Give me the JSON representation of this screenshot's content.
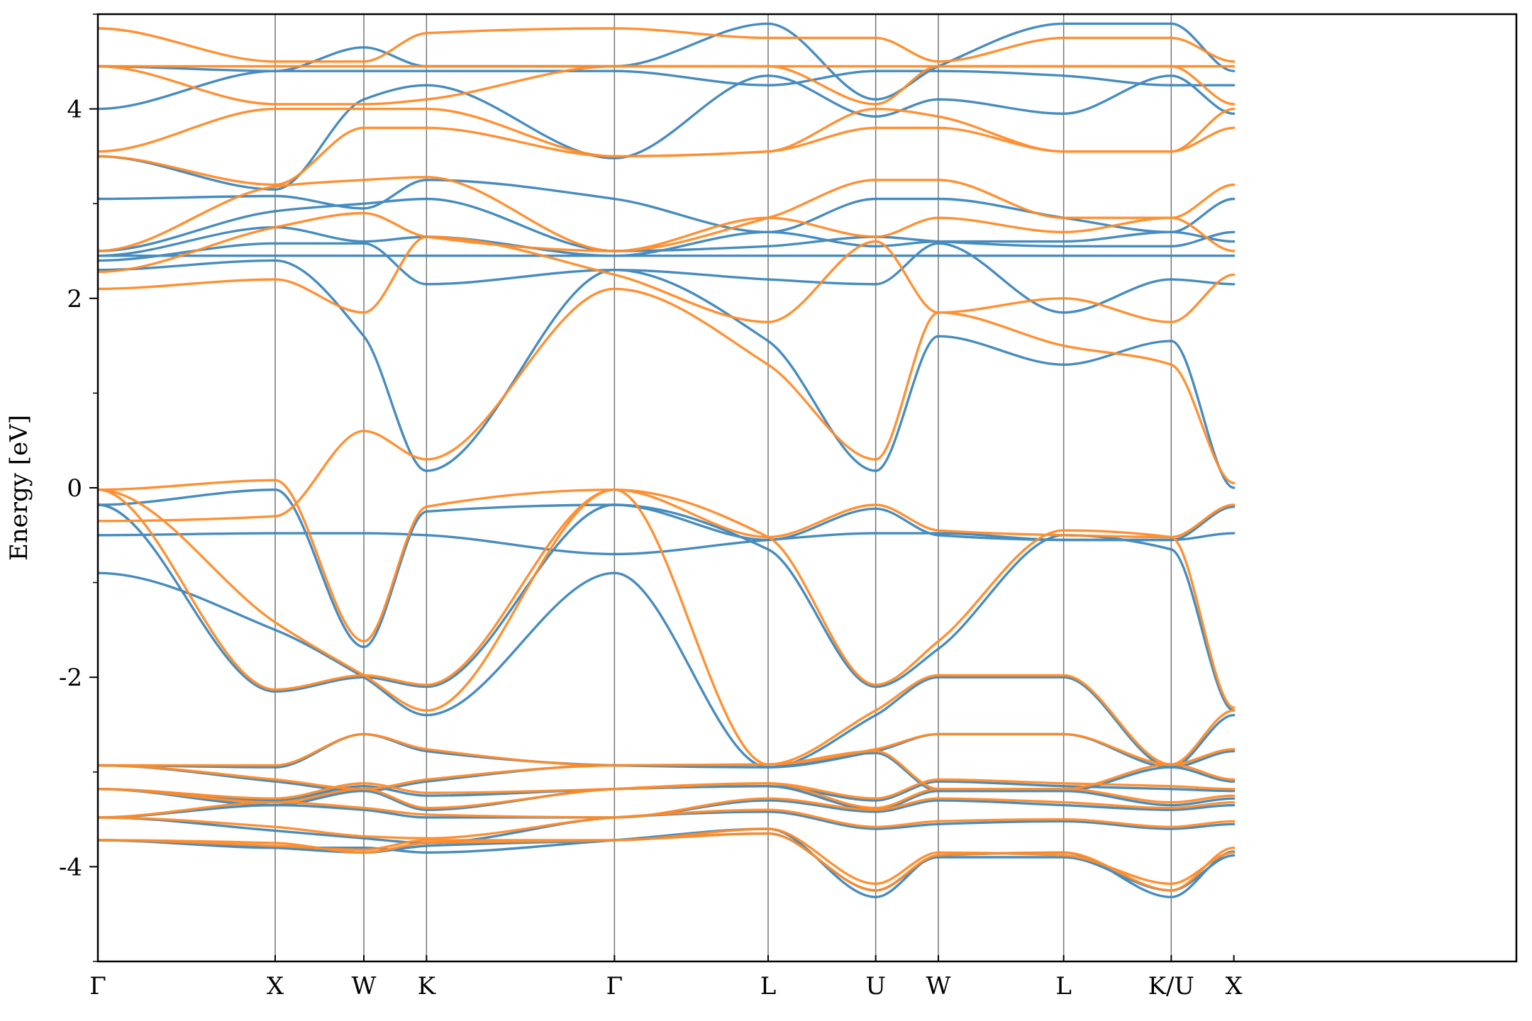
{
  "chart_data": {
    "type": "line",
    "title": "",
    "xlabel": "",
    "ylabel": "Energy [eV]",
    "xlim": [
      0,
      12
    ],
    "ylim": [
      -5,
      5
    ],
    "yticks": [
      -4,
      -2,
      0,
      2,
      4
    ],
    "yticks_minor": [
      -5,
      -3,
      -1,
      1,
      3,
      5
    ],
    "grid": "vertical lines at high-symmetry points",
    "legend": "none",
    "colors": {
      "series_a": "#3d86bb",
      "series_b": "#ff8b28",
      "kpoint_line": "#777777",
      "axis": "#000000"
    },
    "kpoints": [
      {
        "label": "Γ",
        "x": 0
      },
      {
        "label": "X",
        "x": 1.5
      },
      {
        "label": "W",
        "x": 2.25
      },
      {
        "label": "K",
        "x": 2.78
      },
      {
        "label": "Γ",
        "x": 4.37
      },
      {
        "label": "L",
        "x": 5.67
      },
      {
        "label": "U",
        "x": 6.58
      },
      {
        "label": "W",
        "x": 7.11
      },
      {
        "label": "L",
        "x": 8.17
      },
      {
        "label": "K/U",
        "x": 9.08
      },
      {
        "label": "X",
        "x": 9.61
      }
    ],
    "series": [
      {
        "color": "series_a",
        "bands": [
          [
            -3.72,
            -3.8,
            -3.8,
            -3.85,
            -3.72,
            -3.6,
            -4.32,
            -3.88,
            -3.85,
            -4.32,
            -3.84,
            -3.8
          ],
          [
            -3.72,
            -3.8,
            -3.85,
            -3.78,
            -3.72,
            -3.65,
            -4.25,
            -3.9,
            -3.9,
            -4.25,
            -3.88,
            -3.78
          ],
          [
            -3.48,
            -3.62,
            -3.7,
            -3.75,
            -3.48,
            -3.42,
            -3.6,
            -3.55,
            -3.52,
            -3.6,
            -3.55,
            -3.6
          ],
          [
            -3.48,
            -3.35,
            -3.4,
            -3.48,
            -3.48,
            -3.3,
            -3.42,
            -3.3,
            -3.35,
            -3.4,
            -3.35,
            -3.38
          ],
          [
            -3.18,
            -3.35,
            -3.2,
            -3.4,
            -3.18,
            -3.15,
            -3.4,
            -3.2,
            -3.2,
            -3.35,
            -3.28,
            -3.35
          ],
          [
            -3.18,
            -3.3,
            -3.15,
            -3.25,
            -3.18,
            -3.15,
            -3.3,
            -3.1,
            -3.15,
            -3.18,
            -3.2,
            -3.18
          ],
          [
            -2.93,
            -3.1,
            -3.2,
            -3.1,
            -2.93,
            -2.95,
            -2.8,
            -3.2,
            -3.2,
            -2.95,
            -3.1,
            -3.1
          ],
          [
            -2.93,
            -2.95,
            -2.6,
            -2.78,
            -2.93,
            -2.95,
            -2.78,
            -2.6,
            -2.6,
            -2.95,
            -2.78,
            -2.95
          ],
          [
            -0.9,
            -1.5,
            -2.0,
            -2.4,
            -0.9,
            -2.95,
            -2.4,
            -2.0,
            -2.0,
            -2.95,
            -2.4,
            -1.5
          ],
          [
            -0.18,
            -2.15,
            -2.0,
            -2.1,
            -0.18,
            -0.65,
            -2.1,
            -1.7,
            -0.5,
            -0.65,
            -2.35,
            -2.15
          ],
          [
            -0.18,
            -0.02,
            -1.68,
            -0.25,
            -0.18,
            -0.55,
            -0.22,
            -0.5,
            -0.55,
            -0.55,
            -0.2,
            -0.02
          ],
          [
            -0.5,
            -0.48,
            -0.48,
            -0.5,
            -0.7,
            -0.55,
            -0.48,
            -0.48,
            -0.55,
            -0.55,
            -0.48,
            -0.48
          ],
          [
            2.3,
            2.4,
            1.6,
            0.18,
            2.3,
            1.55,
            0.18,
            1.6,
            1.3,
            1.55,
            0.0,
            0.0
          ],
          [
            2.4,
            2.58,
            2.58,
            2.15,
            2.3,
            2.2,
            2.15,
            2.58,
            1.85,
            2.2,
            2.15,
            2.4
          ],
          [
            2.45,
            2.45,
            2.45,
            2.45,
            2.45,
            2.45,
            2.45,
            2.45,
            2.45,
            2.45,
            2.45,
            2.45
          ],
          [
            2.45,
            2.75,
            2.6,
            2.65,
            2.45,
            2.7,
            2.55,
            2.6,
            2.6,
            2.7,
            2.6,
            2.6
          ],
          [
            2.5,
            2.92,
            3.0,
            3.05,
            2.5,
            2.55,
            2.65,
            2.6,
            2.55,
            2.55,
            2.7,
            2.92
          ],
          [
            3.05,
            3.08,
            2.95,
            3.25,
            3.05,
            2.7,
            3.05,
            3.05,
            2.85,
            2.7,
            3.05,
            2.92
          ],
          [
            3.5,
            3.15,
            4.1,
            4.25,
            3.48,
            4.35,
            3.92,
            4.1,
            3.95,
            4.35,
            3.95,
            3.1
          ],
          [
            4.0,
            4.4,
            4.4,
            4.4,
            4.4,
            4.25,
            4.4,
            4.4,
            4.35,
            4.25,
            4.25,
            4.4
          ],
          [
            4.45,
            4.4,
            4.65,
            4.45,
            4.45,
            4.9,
            4.1,
            4.45,
            4.9,
            4.9,
            4.4,
            4.4
          ]
        ]
      },
      {
        "color": "series_b",
        "bands": [
          [
            -3.72,
            -3.75,
            -3.85,
            -3.75,
            -3.72,
            -3.65,
            -4.25,
            -3.88,
            -3.85,
            -4.25,
            -3.8,
            -3.75
          ],
          [
            -3.72,
            -3.78,
            -3.82,
            -3.72,
            -3.72,
            -3.6,
            -4.18,
            -3.85,
            -3.88,
            -4.18,
            -3.85,
            -3.72
          ],
          [
            -3.48,
            -3.58,
            -3.68,
            -3.7,
            -3.48,
            -3.4,
            -3.58,
            -3.52,
            -3.5,
            -3.58,
            -3.52,
            -3.58
          ],
          [
            -3.48,
            -3.32,
            -3.38,
            -3.45,
            -3.48,
            -3.28,
            -3.4,
            -3.28,
            -3.32,
            -3.38,
            -3.32,
            -3.35
          ],
          [
            -3.18,
            -3.32,
            -3.18,
            -3.38,
            -3.18,
            -3.12,
            -3.38,
            -3.18,
            -3.18,
            -3.32,
            -3.25,
            -3.32
          ],
          [
            -3.18,
            -3.28,
            -3.12,
            -3.22,
            -3.18,
            -3.12,
            -3.28,
            -3.08,
            -3.12,
            -3.15,
            -3.18,
            -3.15
          ],
          [
            -2.93,
            -3.08,
            -3.18,
            -3.08,
            -2.93,
            -2.92,
            -2.78,
            -3.18,
            -3.18,
            -2.92,
            -3.08,
            -3.08
          ],
          [
            -2.93,
            -2.93,
            -2.6,
            -2.76,
            -2.93,
            -2.92,
            -2.76,
            -2.6,
            -2.6,
            -2.92,
            -2.76,
            -2.92
          ],
          [
            -0.02,
            -1.42,
            -1.98,
            -2.35,
            -0.02,
            -2.92,
            -2.35,
            -1.98,
            -1.98,
            -2.92,
            -2.35,
            -1.42
          ],
          [
            -0.02,
            -2.13,
            -1.98,
            -2.08,
            -0.02,
            -0.52,
            -2.08,
            -1.62,
            -0.45,
            -0.52,
            -2.32,
            -2.13
          ],
          [
            -0.02,
            0.08,
            -1.62,
            -0.2,
            -0.02,
            -0.52,
            -0.18,
            -0.45,
            -0.5,
            -0.52,
            -0.18,
            0.08
          ],
          [
            -0.35,
            -0.3,
            0.6,
            0.3,
            2.1,
            1.3,
            0.3,
            1.85,
            1.5,
            1.3,
            0.05,
            0.08
          ],
          [
            2.1,
            2.2,
            1.85,
            2.65,
            2.25,
            1.75,
            2.6,
            1.85,
            2.0,
            1.75,
            2.25,
            2.2
          ],
          [
            2.28,
            2.75,
            2.9,
            2.65,
            2.5,
            2.85,
            2.65,
            2.85,
            2.7,
            2.85,
            2.5,
            2.75
          ],
          [
            2.5,
            3.18,
            3.25,
            3.28,
            2.5,
            2.85,
            3.25,
            3.25,
            2.85,
            2.85,
            3.2,
            3.18
          ],
          [
            3.5,
            3.2,
            3.8,
            3.8,
            3.5,
            3.55,
            3.8,
            3.8,
            3.55,
            3.55,
            3.8,
            3.2
          ],
          [
            3.55,
            4.0,
            4.0,
            4.0,
            3.5,
            3.55,
            4.0,
            3.92,
            3.55,
            3.55,
            4.0,
            4.0
          ],
          [
            4.45,
            4.05,
            4.05,
            4.1,
            4.45,
            4.45,
            4.05,
            4.45,
            4.45,
            4.45,
            4.05,
            4.05
          ],
          [
            4.45,
            4.45,
            4.45,
            4.45,
            4.45,
            4.45,
            4.45,
            4.45,
            4.45,
            4.45,
            4.45,
            4.45
          ],
          [
            4.85,
            4.5,
            4.5,
            4.8,
            4.85,
            4.75,
            4.75,
            4.5,
            4.75,
            4.75,
            4.5,
            4.8
          ]
        ]
      }
    ]
  }
}
